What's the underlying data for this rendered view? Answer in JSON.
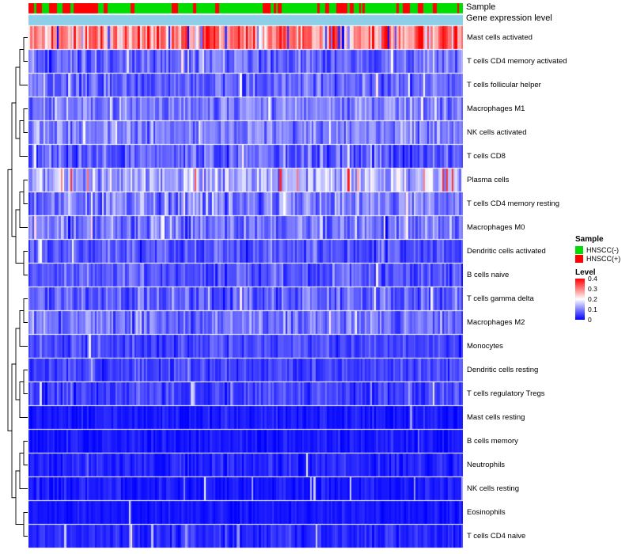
{
  "annotation": {
    "sample_label": "Sample",
    "gene_label": "Gene expression level",
    "gene_bar_color": "#8DCEE8"
  },
  "legend": {
    "sample": {
      "title": "Sample",
      "items": [
        {
          "label": "HNSCC(-)",
          "color": "#00DD00"
        },
        {
          "label": "HNSCC(+)",
          "color": "#FF0000"
        }
      ]
    },
    "level": {
      "title": "Level",
      "ticks": [
        "0.4",
        "0.3",
        "0.2",
        "0.1",
        "0"
      ],
      "top_color": "#FF0000",
      "mid_color": "#FFFFFF",
      "bottom_color": "#0000FF"
    }
  },
  "chart_data": {
    "type": "heatmap",
    "columns": 230,
    "seed": 1337,
    "value_range": [
      0,
      0.4
    ],
    "colormap": [
      {
        "value": 0.0,
        "color": "#0000FF"
      },
      {
        "value": 0.2,
        "color": "#FFFFFF"
      },
      {
        "value": 0.4,
        "color": "#FF0000"
      }
    ],
    "rows": [
      {
        "name": "Mast cells activated",
        "mean": 0.3,
        "sd": 0.06,
        "spike_p": 0.1,
        "spike_val": 0.06
      },
      {
        "name": "T cells CD4 memory activated",
        "mean": 0.085,
        "sd": 0.03,
        "spike_p": 0.05,
        "spike_val": 0.18
      },
      {
        "name": "T cells follicular helper",
        "mean": 0.08,
        "sd": 0.025,
        "spike_p": 0.04,
        "spike_val": 0.16
      },
      {
        "name": "Macrophages M1",
        "mean": 0.1,
        "sd": 0.03,
        "spike_p": 0.04,
        "spike_val": 0.18
      },
      {
        "name": "NK cells activated",
        "mean": 0.1,
        "sd": 0.03,
        "spike_p": 0.03,
        "spike_val": 0.16
      },
      {
        "name": "T cells CD8",
        "mean": 0.07,
        "sd": 0.03,
        "spike_p": 0.05,
        "spike_val": 0.16
      },
      {
        "name": "Plasma cells",
        "mean": 0.14,
        "sd": 0.04,
        "spike_p": 0.04,
        "spike_val": 0.32
      },
      {
        "name": "T cells CD4 memory resting",
        "mean": 0.1,
        "sd": 0.035,
        "spike_p": 0.04,
        "spike_val": 0.2
      },
      {
        "name": "Macrophages M0",
        "mean": 0.095,
        "sd": 0.035,
        "spike_p": 0.04,
        "spike_val": 0.2
      },
      {
        "name": "Dendritic cells activated",
        "mean": 0.065,
        "sd": 0.025,
        "spike_p": 0.03,
        "spike_val": 0.15
      },
      {
        "name": "B cells naive",
        "mean": 0.065,
        "sd": 0.025,
        "spike_p": 0.03,
        "spike_val": 0.15
      },
      {
        "name": "T cells gamma delta",
        "mean": 0.075,
        "sd": 0.03,
        "spike_p": 0.03,
        "spike_val": 0.16
      },
      {
        "name": "Macrophages M2",
        "mean": 0.09,
        "sd": 0.03,
        "spike_p": 0.03,
        "spike_val": 0.16
      },
      {
        "name": "Monocytes",
        "mean": 0.055,
        "sd": 0.02,
        "spike_p": 0.03,
        "spike_val": 0.13
      },
      {
        "name": "Dendritic cells resting",
        "mean": 0.05,
        "sd": 0.02,
        "spike_p": 0.03,
        "spike_val": 0.13
      },
      {
        "name": "T cells regulatory Tregs",
        "mean": 0.05,
        "sd": 0.02,
        "spike_p": 0.03,
        "spike_val": 0.12
      },
      {
        "name": "Mast cells resting",
        "mean": 0.02,
        "sd": 0.012,
        "spike_p": 0.015,
        "spike_val": 0.12
      },
      {
        "name": "B cells memory",
        "mean": 0.02,
        "sd": 0.012,
        "spike_p": 0.015,
        "spike_val": 0.12
      },
      {
        "name": "Neutrophils",
        "mean": 0.03,
        "sd": 0.015,
        "spike_p": 0.02,
        "spike_val": 0.12
      },
      {
        "name": "NK cells resting",
        "mean": 0.02,
        "sd": 0.012,
        "spike_p": 0.015,
        "spike_val": 0.12
      },
      {
        "name": "Eosinophils",
        "mean": 0.018,
        "sd": 0.01,
        "spike_p": 0.01,
        "spike_val": 0.12
      },
      {
        "name": "T cells CD4 naive",
        "mean": 0.03,
        "sd": 0.015,
        "spike_p": 0.035,
        "spike_val": 0.14
      }
    ],
    "sample_track": {
      "negative_color": "#00DD00",
      "positive_color": "#FF0000",
      "zones": [
        {
          "until": 0.16,
          "p": 0.5
        },
        {
          "until": 0.3,
          "p": 0.1
        },
        {
          "until": 0.5,
          "p": 0.07
        },
        {
          "until": 0.58,
          "p": 0.28
        },
        {
          "until": 0.7,
          "p": 0.1
        },
        {
          "until": 0.78,
          "p": 0.45
        },
        {
          "until": 0.86,
          "p": 0.12
        },
        {
          "until": 0.95,
          "p": 0.4
        },
        {
          "until": 1.0,
          "p": 0.08
        }
      ]
    }
  }
}
